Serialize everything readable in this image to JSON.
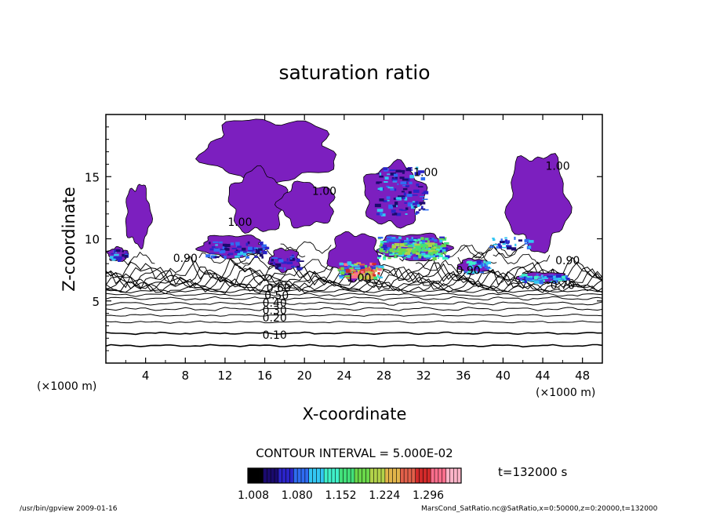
{
  "chart_data": {
    "type": "heatmap",
    "title": "saturation ratio",
    "xlabel": "X-coordinate",
    "ylabel": "Z-coordinate",
    "x_unit": "(×1000 m)",
    "z_unit": "(×1000 m)",
    "xlim": [
      0,
      50
    ],
    "ylim": [
      0,
      20
    ],
    "x_ticks": [
      "4",
      "8",
      "12",
      "16",
      "20",
      "24",
      "28",
      "32",
      "36",
      "40",
      "44",
      "48"
    ],
    "y_ticks": [
      "5",
      "10",
      "15"
    ],
    "contour_interval_label": "CONTOUR INTERVAL = 5.000E-02",
    "contour_labels": [
      {
        "text": "0.10",
        "x": 17.0,
        "z": 2.2
      },
      {
        "text": "0.20",
        "x": 17.0,
        "z": 3.6
      },
      {
        "text": "0.30",
        "x": 17.0,
        "z": 4.2
      },
      {
        "text": "0.40",
        "x": 17.0,
        "z": 4.8
      },
      {
        "text": "0.50",
        "x": 17.2,
        "z": 5.4
      },
      {
        "text": "0.60",
        "x": 17.4,
        "z": 6.0
      },
      {
        "text": "0.70",
        "x": 46.0,
        "z": 6.2
      },
      {
        "text": "0.90",
        "x": 8.0,
        "z": 8.4
      },
      {
        "text": "0.90",
        "x": 36.5,
        "z": 7.4
      },
      {
        "text": "0.90",
        "x": 46.5,
        "z": 8.2
      },
      {
        "text": "1.00",
        "x": 22.0,
        "z": 13.8
      },
      {
        "text": "1.00",
        "x": 13.5,
        "z": 11.3
      },
      {
        "text": "1.00",
        "x": 32.2,
        "z": 15.3
      },
      {
        "text": "1.00",
        "x": 25.5,
        "z": 6.8
      },
      {
        "text": "1.00",
        "x": 45.5,
        "z": 15.8
      }
    ],
    "contour_levels_z": [
      1.4,
      2.4,
      3.3,
      3.85,
      4.35,
      4.8,
      5.2,
      5.5,
      5.8,
      6.0,
      6.2,
      6.4,
      6.6,
      6.8,
      7.0,
      7.2,
      7.4
    ],
    "supersaturated_regions": [
      {
        "x": [
          10,
          28
        ],
        "z": [
          8,
          19.5
        ],
        "max_value": 1.008
      },
      {
        "x": [
          2,
          4.5
        ],
        "z": [
          9.5,
          14.3
        ],
        "max_value": 1.008
      },
      {
        "x": [
          40.5,
          46.5
        ],
        "z": [
          9.2,
          16.8
        ],
        "max_value": 1.008
      },
      {
        "x": [
          23,
          28
        ],
        "z": [
          6.8,
          10.2
        ],
        "max_value": 1.296
      },
      {
        "x": [
          27.5,
          34.5
        ],
        "z": [
          8.2,
          10.5
        ],
        "max_value": 1.2
      },
      {
        "x": [
          27,
          32
        ],
        "z": [
          11.5,
          16
        ],
        "max_value": 1.1
      },
      {
        "x": [
          41.5,
          46.5
        ],
        "z": [
          6.5,
          7.5
        ],
        "max_value": 1.1
      }
    ],
    "colorbar": {
      "ticks": [
        "1.008",
        "1.080",
        "1.152",
        "1.224",
        "1.296"
      ],
      "colors": [
        "#000000",
        "#1a0a6e",
        "#2b24c8",
        "#2f6cf2",
        "#33c6f2",
        "#3ff0c8",
        "#42e07a",
        "#6ad84a",
        "#b2d24a",
        "#e2b44a",
        "#e2604a",
        "#d22a2a",
        "#ff6e8c",
        "#ffb4c8"
      ]
    },
    "grid": false,
    "legend": "bottom-center",
    "fill_color": "#7c1fbf"
  },
  "annotations": {
    "time_label": "t=132000 s",
    "footer_left": "/usr/bin/gpview  2009-01-16",
    "footer_right": "MarsCond_SatRatio.nc@SatRatio,x=0:50000,z=0:20000,t=132000"
  }
}
